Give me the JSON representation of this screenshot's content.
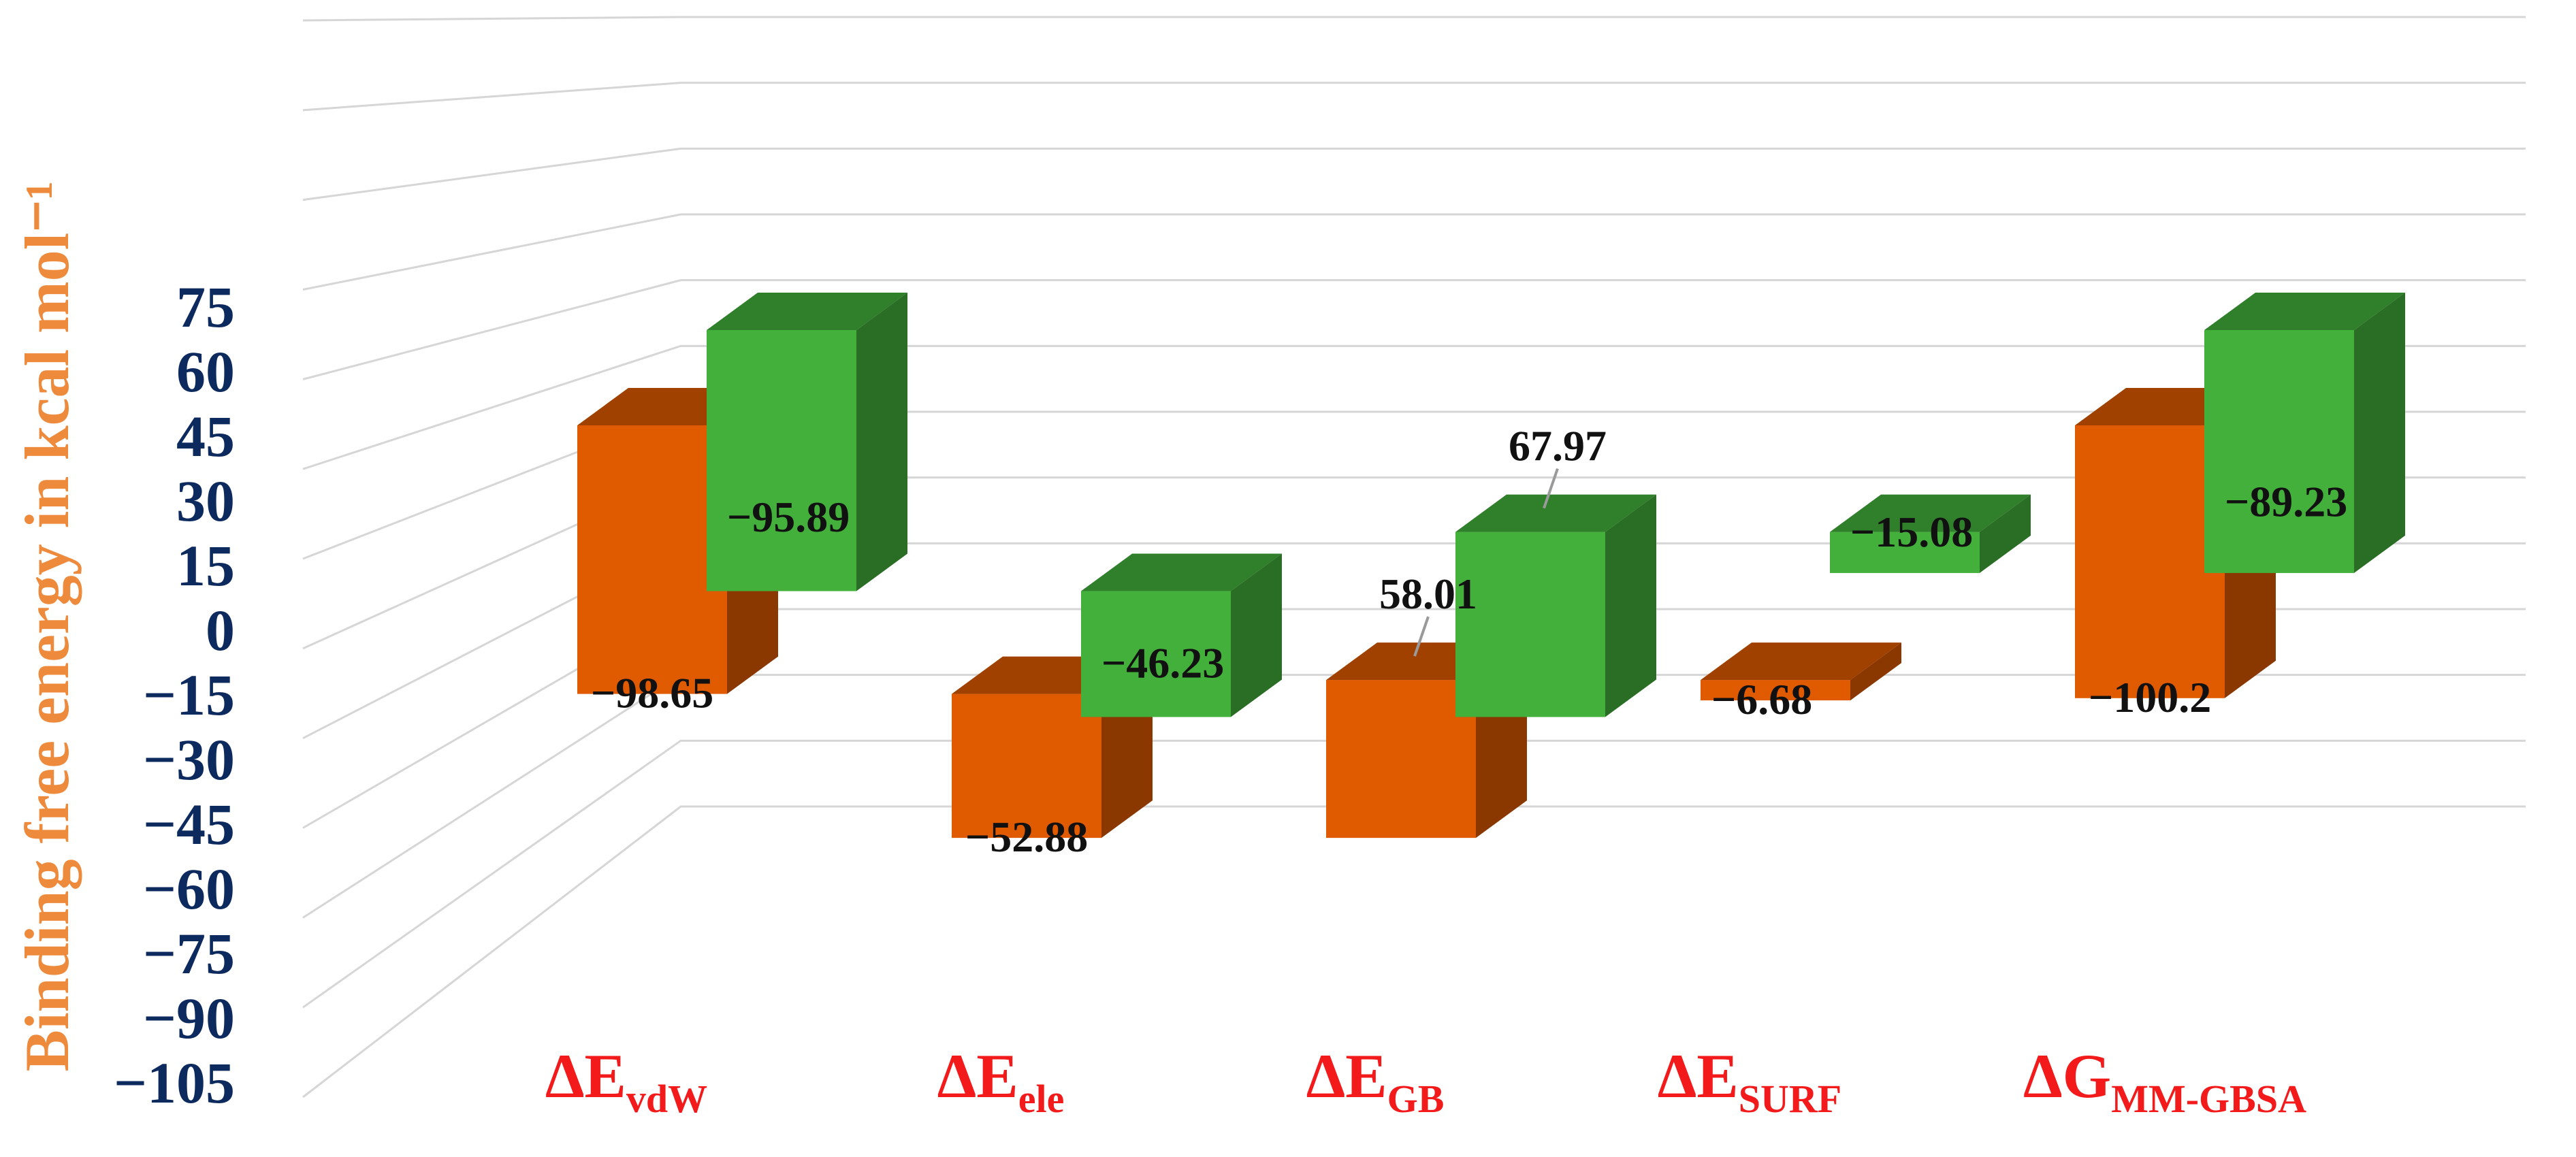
{
  "chart_data": {
    "type": "bar",
    "title": "",
    "xlabel": "",
    "ylabel": "Binding free energy in kcal mol⁻¹",
    "ylim": [
      -105,
      75
    ],
    "yticks": [
      "75",
      "60",
      "45",
      "30",
      "15",
      "0",
      "−15",
      "−30",
      "−45",
      "−60",
      "−75",
      "−90",
      "−105"
    ],
    "grid": true,
    "legend": "none",
    "categories": [
      {
        "main": "ΔE",
        "sub": "vdW"
      },
      {
        "main": "ΔE",
        "sub": "ele"
      },
      {
        "main": "ΔE",
        "sub": "GB"
      },
      {
        "main": "ΔE",
        "sub": "SURF"
      },
      {
        "main": "ΔG",
        "sub": "MM-GBSA"
      }
    ],
    "series": [
      {
        "color": "#e05a00",
        "values": [
          -98.65,
          -52.88,
          58.01,
          -6.68,
          -100.2
        ],
        "labels": [
          "−98.65",
          "−52.88",
          "58.01",
          "−6.68",
          "−100.2"
        ]
      },
      {
        "color": "#43b03b",
        "values": [
          -95.89,
          -46.23,
          67.97,
          -15.08,
          -89.23
        ],
        "labels": [
          "−95.89",
          "−46.23",
          "67.97",
          "−15.08",
          "−89.23"
        ]
      }
    ]
  }
}
